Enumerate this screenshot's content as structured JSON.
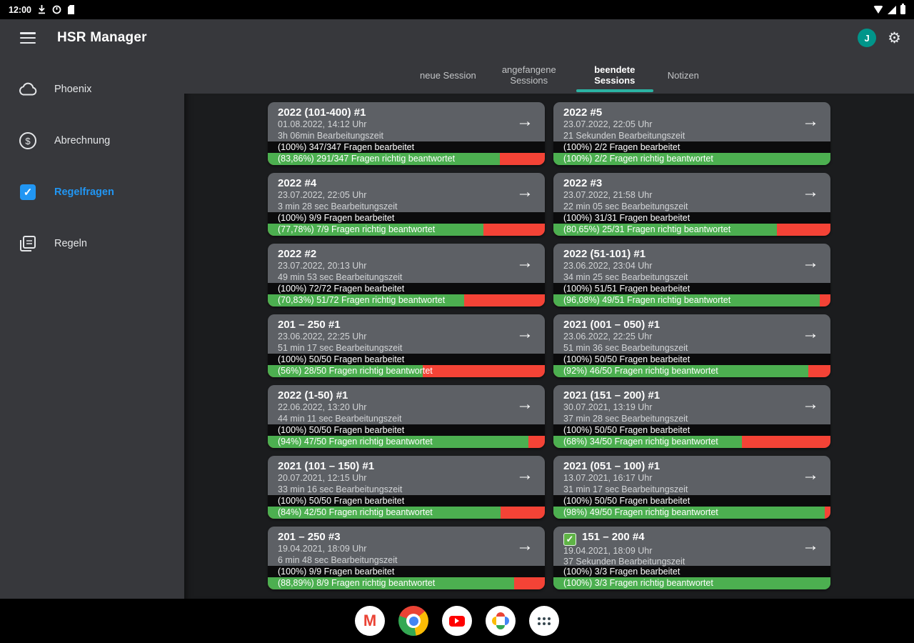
{
  "colors": {
    "green": "#4caf50",
    "red": "#f44336",
    "accent_blue": "#2196f3",
    "accent_teal": "#2bb3a3",
    "card_gray": "#5d6065",
    "bar_gray": "#37383c"
  },
  "status_bar": {
    "time": "12:00"
  },
  "app_bar": {
    "title": "HSR Manager",
    "avatar_letter": "J"
  },
  "sidebar": {
    "items": [
      {
        "label": "Phoenix",
        "icon": "cloud-icon"
      },
      {
        "label": "Abrechnung",
        "icon": "billing-icon"
      },
      {
        "label": "Regelfragen",
        "icon": "checkbox-icon",
        "active": true
      },
      {
        "label": "Regeln",
        "icon": "rules-icon"
      }
    ]
  },
  "tabs": [
    {
      "label": "neue Session",
      "active": false
    },
    {
      "label": "angefangene Sessions",
      "active": false
    },
    {
      "label": "beendete Sessions",
      "active": true
    },
    {
      "label": "Notizen",
      "active": false
    }
  ],
  "sessions": {
    "columns": [
      [
        {
          "title": "2022 (101-400) #1",
          "date": "01.08.2022, 14:12 Uhr",
          "duration": "3h 06min Bearbeitungszeit",
          "processed": "(100%) 347/347 Fragen bearbeitet",
          "answered": "(83,86%) 291/347 Fragen richtig beantwortet",
          "correct_pct": 83.86,
          "checked": false
        },
        {
          "title": "2022 #4",
          "date": "23.07.2022, 22:05 Uhr",
          "duration": "3 min 28 sec Bearbeitungszeit",
          "processed": "(100%) 9/9 Fragen bearbeitet",
          "answered": "(77,78%) 7/9 Fragen richtig beantwortet",
          "correct_pct": 77.78,
          "checked": false
        },
        {
          "title": "2022 #2",
          "date": "23.07.2022, 20:13 Uhr",
          "duration": "49 min 53 sec Bearbeitungszeit",
          "processed": "(100%) 72/72 Fragen bearbeitet",
          "answered": "(70,83%) 51/72 Fragen richtig beantwortet",
          "correct_pct": 70.83,
          "checked": false
        },
        {
          "title": "201 – 250 #1",
          "date": "23.06.2022, 22:25 Uhr",
          "duration": "51 min 17 sec Bearbeitungszeit",
          "processed": "(100%) 50/50 Fragen bearbeitet",
          "answered": "(56%) 28/50 Fragen richtig beantwortet",
          "correct_pct": 56,
          "checked": false
        },
        {
          "title": "2022 (1-50) #1",
          "date": "22.06.2022, 13:20 Uhr",
          "duration": "44 min 11 sec Bearbeitungszeit",
          "processed": "(100%) 50/50 Fragen bearbeitet",
          "answered": "(94%) 47/50 Fragen richtig beantwortet",
          "correct_pct": 94,
          "checked": false
        },
        {
          "title": "2021 (101 – 150) #1",
          "date": "20.07.2021, 12:15 Uhr",
          "duration": "33 min 16 sec Bearbeitungszeit",
          "processed": "(100%) 50/50 Fragen bearbeitet",
          "answered": "(84%) 42/50 Fragen richtig beantwortet",
          "correct_pct": 84,
          "checked": false
        },
        {
          "title": "201 – 250 #3",
          "date": "19.04.2021, 18:09 Uhr",
          "duration": "6 min 48 sec Bearbeitungszeit",
          "processed": "(100%) 9/9 Fragen bearbeitet",
          "answered": "(88,89%) 8/9 Fragen richtig beantwortet",
          "correct_pct": 88.89,
          "checked": false
        }
      ],
      [
        {
          "title": "2022 #5",
          "date": "23.07.2022, 22:05 Uhr",
          "duration": "21 Sekunden Bearbeitungszeit",
          "processed": "(100%) 2/2 Fragen bearbeitet",
          "answered": "(100%) 2/2 Fragen richtig beantwortet",
          "correct_pct": 100,
          "checked": false
        },
        {
          "title": "2022 #3",
          "date": "23.07.2022, 21:58 Uhr",
          "duration": "22 min 05 sec Bearbeitungszeit",
          "processed": "(100%) 31/31 Fragen bearbeitet",
          "answered": "(80,65%) 25/31 Fragen richtig beantwortet",
          "correct_pct": 80.65,
          "checked": false
        },
        {
          "title": "2022 (51-101) #1",
          "date": "23.06.2022, 23:04 Uhr",
          "duration": "34 min 25 sec Bearbeitungszeit",
          "processed": "(100%) 51/51 Fragen bearbeitet",
          "answered": "(96,08%) 49/51 Fragen richtig beantwortet",
          "correct_pct": 96.08,
          "checked": false
        },
        {
          "title": "2021 (001 – 050) #1",
          "date": "23.06.2022, 22:25 Uhr",
          "duration": "51 min 36 sec Bearbeitungszeit",
          "processed": "(100%) 50/50 Fragen bearbeitet",
          "answered": "(92%) 46/50 Fragen richtig beantwortet",
          "correct_pct": 92,
          "checked": false
        },
        {
          "title": "2021 (151 – 200) #1",
          "date": "30.07.2021, 13:19 Uhr",
          "duration": "37 min 28 sec Bearbeitungszeit",
          "processed": "(100%) 50/50 Fragen bearbeitet",
          "answered": "(68%) 34/50 Fragen richtig beantwortet",
          "correct_pct": 68,
          "checked": false
        },
        {
          "title": "2021 (051 – 100) #1",
          "date": "13.07.2021, 16:17 Uhr",
          "duration": "31 min 17 sec Bearbeitungszeit",
          "processed": "(100%) 50/50 Fragen bearbeitet",
          "answered": "(98%) 49/50 Fragen richtig beantwortet",
          "correct_pct": 98,
          "checked": false
        },
        {
          "title": "151 – 200 #4",
          "date": "19.04.2021, 18:09 Uhr",
          "duration": "37 Sekunden Bearbeitungszeit",
          "processed": "(100%) 3/3 Fragen bearbeitet",
          "answered": "(100%) 3/3 Fragen richtig beantwortet",
          "correct_pct": 100,
          "checked": true
        }
      ]
    ]
  },
  "dock": {
    "icons": [
      "Gmail",
      "Chrome",
      "YouTube",
      "Photos",
      "Apps"
    ]
  }
}
